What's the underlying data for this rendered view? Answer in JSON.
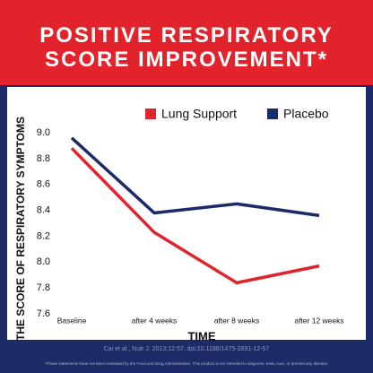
{
  "chart_data": {
    "type": "line",
    "title": "POSITIVE RESPIRATORY SCORE IMPROVEMENT*",
    "x_label": "TIME",
    "y_label": "THE SCORE OF RESPIRATORY SYMPTOMS",
    "categories": [
      "Baseline",
      "after 4 weeks",
      "after 8 weeks",
      "after 12 weeks"
    ],
    "series": [
      {
        "name": "Lung Support",
        "color": "#e0242c",
        "values": [
          8.88,
          8.23,
          7.84,
          7.97
        ]
      },
      {
        "name": "Placebo",
        "color": "#1b2a6b",
        "values": [
          8.96,
          8.38,
          8.45,
          8.36
        ]
      }
    ],
    "ylim": [
      7.6,
      9.0
    ],
    "yticks": [
      7.6,
      7.8,
      {
        "value": 8.0,
        "label": "8.0"
      },
      8.2,
      8.4,
      8.6,
      8.8,
      {
        "value": 9.0,
        "label": "9.0"
      }
    ],
    "grid": false,
    "legend": "top",
    "source": "Cai et al., Nutr J. 2013;12:57. doi:10.1186/1475-2891-12-57",
    "footnote": "*These statements have not been evaluated by the Food and Drug Administration. This product is not intended to diagnose, treat, cure, or prevent any disease."
  }
}
